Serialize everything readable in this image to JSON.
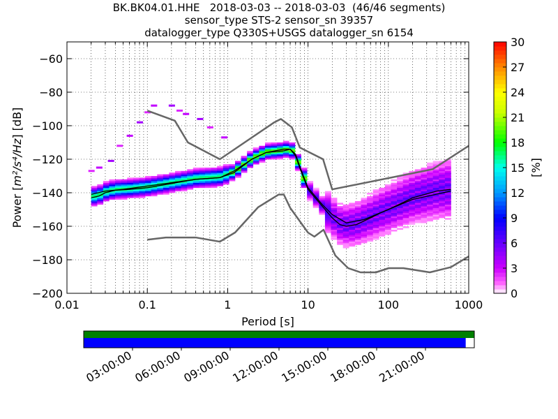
{
  "chart_data": {
    "type": "heatmap",
    "title_lines": [
      "BK.BK04.01.HHE   2018-03-03 -- 2018-03-03  (46/46 segments)",
      "sensor_type STS-2 sensor_sn 39357",
      "datalogger_type Q330S+USGS datalogger_sn 6154"
    ],
    "xlabel": "Period [s]",
    "ylabel_prefix": "Power [",
    "ylabel_math": "m²/s⁴/Hz",
    "ylabel_suffix": "] [dB]",
    "x_scale": "log",
    "xlim": [
      0.01,
      1000
    ],
    "ylim": [
      -200,
      -50
    ],
    "x_ticks": [
      {
        "value": 0.01,
        "label": "0.01"
      },
      {
        "value": 0.1,
        "label": "0.1"
      },
      {
        "value": 1,
        "label": "1"
      },
      {
        "value": 10,
        "label": "10"
      },
      {
        "value": 100,
        "label": "100"
      },
      {
        "value": 1000,
        "label": "1000"
      }
    ],
    "y_ticks": [
      {
        "value": -60,
        "label": "−60"
      },
      {
        "value": -80,
        "label": "−80"
      },
      {
        "value": -100,
        "label": "−100"
      },
      {
        "value": -120,
        "label": "−120"
      },
      {
        "value": -140,
        "label": "−140"
      },
      {
        "value": -160,
        "label": "−160"
      },
      {
        "value": -180,
        "label": "−180"
      },
      {
        "value": -200,
        "label": "−200"
      }
    ],
    "colorbar": {
      "label": "[%]",
      "range": [
        0,
        30
      ],
      "ticks": [
        {
          "value": 0,
          "label": "0"
        },
        {
          "value": 3,
          "label": "3"
        },
        {
          "value": 6,
          "label": "6"
        },
        {
          "value": 9,
          "label": "9"
        },
        {
          "value": 12,
          "label": "12"
        },
        {
          "value": 15,
          "label": "15"
        },
        {
          "value": 18,
          "label": "18"
        },
        {
          "value": 21,
          "label": "21"
        },
        {
          "value": 24,
          "label": "24"
        },
        {
          "value": 27,
          "label": "27"
        },
        {
          "value": 30,
          "label": "30"
        }
      ]
    },
    "noise_model_high": [
      [
        0.1,
        -91
      ],
      [
        0.22,
        -97
      ],
      [
        0.32,
        -110
      ],
      [
        0.8,
        -120
      ],
      [
        3.8,
        -98
      ],
      [
        4.6,
        -96
      ],
      [
        6.3,
        -101
      ],
      [
        7.9,
        -113
      ],
      [
        15.4,
        -120
      ],
      [
        20,
        -138
      ],
      [
        354,
        -126
      ],
      [
        1000,
        -112
      ]
    ],
    "noise_model_low": [
      [
        0.1,
        -168
      ],
      [
        0.17,
        -166.7
      ],
      [
        0.4,
        -166.7
      ],
      [
        0.8,
        -169.2
      ],
      [
        1.24,
        -163.7
      ],
      [
        2.4,
        -148.6
      ],
      [
        4.3,
        -141.1
      ],
      [
        5,
        -141.1
      ],
      [
        6,
        -149
      ],
      [
        10,
        -163.8
      ],
      [
        12,
        -166.2
      ],
      [
        15.6,
        -162.1
      ],
      [
        21.9,
        -177.5
      ],
      [
        31.6,
        -185
      ],
      [
        45,
        -187.5
      ],
      [
        70,
        -187.5
      ],
      [
        101,
        -185
      ],
      [
        154,
        -185
      ],
      [
        328,
        -187.5
      ],
      [
        600,
        -184.4
      ],
      [
        1000,
        -178
      ]
    ],
    "mode_curve": [
      [
        0.02,
        -143
      ],
      [
        0.025,
        -142
      ],
      [
        0.03,
        -140
      ],
      [
        0.04,
        -138.5
      ],
      [
        0.06,
        -138
      ],
      [
        0.1,
        -137
      ],
      [
        0.2,
        -134.5
      ],
      [
        0.4,
        -132
      ],
      [
        0.8,
        -131
      ],
      [
        1.2,
        -128
      ],
      [
        2,
        -120
      ],
      [
        3,
        -116
      ],
      [
        5,
        -115
      ],
      [
        6,
        -114
      ],
      [
        7,
        -118
      ],
      [
        8,
        -126
      ],
      [
        10,
        -138
      ],
      [
        15,
        -148
      ],
      [
        20,
        -155
      ],
      [
        25,
        -159
      ],
      [
        30,
        -160
      ],
      [
        40,
        -159
      ],
      [
        60,
        -155
      ],
      [
        80,
        -152
      ],
      [
        100,
        -150
      ],
      [
        150,
        -146
      ],
      [
        200,
        -143
      ],
      [
        400,
        -139
      ],
      [
        600,
        -138
      ]
    ],
    "mean_curve": [
      [
        0.02,
        -141
      ],
      [
        0.03,
        -139
      ],
      [
        0.05,
        -138
      ],
      [
        0.1,
        -136
      ],
      [
        0.2,
        -134
      ],
      [
        0.4,
        -132
      ],
      [
        0.8,
        -131
      ],
      [
        1.2,
        -127
      ],
      [
        2,
        -120
      ],
      [
        3,
        -116
      ],
      [
        5,
        -114
      ],
      [
        6,
        -114
      ],
      [
        7,
        -117
      ],
      [
        8,
        -125
      ],
      [
        10,
        -137
      ],
      [
        15,
        -147
      ],
      [
        20,
        -153
      ],
      [
        30,
        -158
      ],
      [
        50,
        -156
      ],
      [
        100,
        -150
      ],
      [
        200,
        -144
      ],
      [
        600,
        -139
      ]
    ],
    "outlier_band_upper": [
      [
        0.02,
        -127
      ],
      [
        0.025,
        -125
      ],
      [
        0.035,
        -121
      ],
      [
        0.045,
        -112
      ],
      [
        0.06,
        -106
      ],
      [
        0.08,
        -98
      ],
      [
        0.1,
        -92
      ],
      [
        0.12,
        -88
      ],
      [
        0.2,
        -88
      ],
      [
        0.25,
        -91
      ],
      [
        0.3,
        -93
      ],
      [
        0.45,
        -96
      ],
      [
        0.6,
        -101
      ],
      [
        0.9,
        -107
      ]
    ],
    "density_summary": {
      "cluster_short_period_db": [
        -146,
        -128
      ],
      "microseism_peak_period_s": 6,
      "microseism_peak_db": -114,
      "long_period_spread_db": [
        -178,
        -125
      ]
    },
    "timeline": {
      "labels": [
        "03:00:00",
        "06:00:00",
        "09:00:00",
        "12:00:00",
        "15:00:00",
        "18:00:00",
        "21:00:00"
      ],
      "tick_hours": [
        3,
        6,
        9,
        12,
        15,
        18,
        21
      ],
      "range_hours": [
        0,
        24
      ],
      "coverage_fraction": 0.978,
      "segment_color": "#008000",
      "data_color": "#0000ff"
    }
  }
}
